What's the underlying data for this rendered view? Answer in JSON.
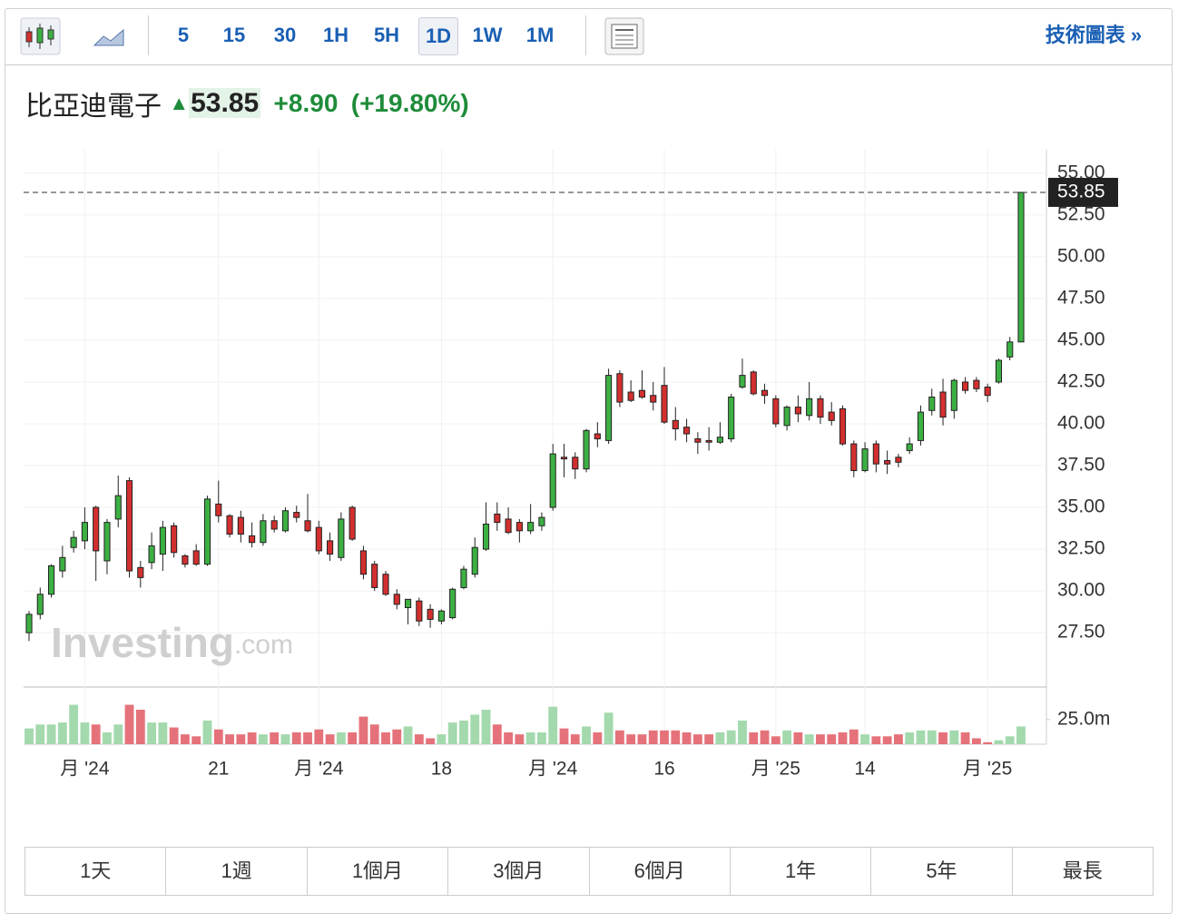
{
  "toolbar": {
    "intervals": [
      "5",
      "15",
      "30",
      "1H",
      "5H",
      "1D",
      "1W",
      "1M"
    ],
    "selected": "1D",
    "link": "技術圖表 »"
  },
  "quote": {
    "name": "比亞迪電子",
    "price": "53.85",
    "change": "+8.90",
    "change_pct": "(+19.80%)"
  },
  "periods": [
    "1天",
    "1週",
    "1個月",
    "3個月",
    "6個月",
    "1年",
    "5年",
    "最長"
  ],
  "chart_data": {
    "type": "candlestick",
    "watermark": [
      "Investing",
      ".com"
    ],
    "up_color": "#3cb043",
    "down_color": "#d32f2f",
    "volume_up_color": "#a3d9ad",
    "volume_down_color": "#e5727a",
    "categories": [
      null,
      null,
      null,
      null,
      null,
      "月 '24",
      null,
      null,
      null,
      null,
      null,
      null,
      null,
      null,
      null,
      null,
      null,
      "21",
      null,
      null,
      null,
      null,
      null,
      null,
      null,
      null,
      "月 '24",
      null,
      null,
      null,
      null,
      null,
      null,
      null,
      null,
      null,
      null,
      "18",
      null,
      null,
      null,
      null,
      null,
      null,
      null,
      null,
      null,
      "月 '24",
      null,
      null,
      null,
      null,
      null,
      null,
      null,
      null,
      null,
      "16",
      null,
      null,
      null,
      null,
      null,
      null,
      null,
      null,
      null,
      "月 '25",
      null,
      null,
      null,
      null,
      null,
      null,
      null,
      "14",
      null,
      null,
      null,
      null,
      null,
      null,
      null,
      null,
      null,
      null,
      "月 '25",
      null,
      null,
      null
    ],
    "open": [
      27.5,
      28.6,
      29.8,
      31.2,
      32.6,
      33.0,
      35.0,
      31.8,
      34.3,
      36.6,
      31.4,
      31.7,
      32.2,
      33.9,
      32.1,
      32.4,
      31.6,
      35.2,
      34.5,
      34.4,
      33.3,
      32.9,
      34.2,
      33.6,
      34.7,
      34.2,
      33.8,
      33.0,
      32.0,
      35.0,
      32.4,
      31.6,
      31.0,
      29.8,
      29.0,
      29.4,
      28.9,
      28.2,
      28.4,
      30.2,
      31.0,
      32.5,
      34.6,
      34.3,
      34.1,
      33.6,
      33.9,
      35.0,
      38.0,
      38.0,
      37.3,
      39.4,
      39.0,
      43.0,
      41.9,
      42.0,
      41.7,
      42.3,
      40.2,
      39.8,
      39.1,
      39.0,
      38.9,
      39.1,
      42.2,
      43.1,
      42.0,
      41.5,
      39.9,
      41.0,
      40.5,
      41.5,
      40.7,
      40.9,
      38.8,
      37.2,
      38.8,
      37.8,
      38.0,
      38.4,
      39.0,
      40.8,
      41.9,
      40.8,
      42.5,
      42.6,
      42.2,
      42.5,
      44.0,
      44.9
    ],
    "high": [
      28.8,
      30.2,
      31.6,
      32.7,
      33.6,
      35.0,
      35.1,
      34.3,
      36.9,
      36.8,
      31.8,
      33.5,
      34.2,
      34.1,
      32.2,
      32.8,
      35.7,
      36.6,
      34.6,
      34.8,
      34.1,
      34.6,
      34.5,
      35.0,
      35.1,
      35.8,
      34.2,
      33.5,
      34.7,
      35.1,
      32.7,
      31.8,
      31.2,
      30.1,
      29.5,
      29.6,
      29.2,
      28.9,
      30.2,
      31.5,
      33.2,
      35.3,
      35.3,
      35.0,
      34.3,
      35.2,
      34.7,
      38.8,
      38.8,
      38.3,
      39.7,
      40.1,
      43.3,
      43.2,
      42.6,
      43.2,
      42.5,
      43.4,
      41.0,
      40.3,
      39.5,
      39.8,
      40.1,
      41.8,
      43.9,
      43.2,
      42.4,
      41.7,
      41.1,
      41.7,
      42.5,
      41.7,
      41.3,
      41.1,
      39.0,
      38.9,
      39.0,
      38.4,
      38.2,
      39.2,
      41.1,
      42.1,
      42.7,
      42.7,
      42.8,
      42.8,
      42.4,
      43.9,
      45.2,
      53.85
    ],
    "low": [
      27.0,
      28.3,
      29.6,
      30.8,
      32.3,
      32.5,
      30.6,
      31.0,
      33.8,
      30.8,
      30.2,
      31.3,
      31.2,
      32.0,
      31.4,
      31.5,
      31.5,
      34.1,
      33.2,
      32.9,
      32.6,
      32.7,
      33.5,
      33.5,
      34.1,
      33.5,
      32.2,
      31.8,
      31.8,
      33.0,
      30.7,
      30.0,
      29.7,
      28.9,
      28.0,
      27.9,
      27.8,
      28.0,
      28.3,
      30.1,
      30.8,
      32.4,
      33.6,
      33.4,
      32.9,
      33.4,
      33.6,
      34.8,
      36.8,
      36.7,
      37.1,
      38.6,
      38.8,
      41.0,
      41.3,
      41.5,
      40.8,
      40.0,
      39.0,
      38.9,
      38.2,
      38.4,
      38.8,
      38.9,
      42.1,
      41.7,
      41.2,
      39.8,
      39.6,
      40.1,
      40.2,
      40.0,
      39.9,
      38.7,
      36.8,
      37.1,
      37.1,
      37.0,
      37.4,
      38.2,
      38.7,
      40.5,
      39.9,
      40.3,
      41.8,
      41.9,
      41.3,
      42.4,
      43.8,
      44.9
    ],
    "close": [
      28.6,
      29.8,
      31.5,
      32.0,
      33.2,
      34.1,
      32.4,
      34.1,
      35.7,
      31.2,
      30.8,
      32.7,
      33.8,
      32.3,
      31.6,
      31.6,
      35.5,
      34.5,
      33.4,
      33.4,
      32.9,
      34.2,
      33.7,
      34.8,
      34.4,
      33.6,
      32.4,
      32.2,
      34.3,
      33.1,
      31.0,
      30.2,
      29.8,
      29.2,
      29.5,
      28.2,
      28.3,
      28.8,
      30.1,
      31.3,
      32.6,
      34.0,
      34.1,
      33.5,
      33.6,
      34.1,
      34.4,
      38.2,
      37.9,
      37.3,
      39.6,
      39.1,
      42.9,
      41.3,
      41.4,
      41.6,
      41.3,
      40.1,
      39.7,
      39.4,
      38.9,
      38.9,
      39.2,
      41.6,
      42.9,
      41.8,
      41.7,
      40.0,
      41.0,
      40.6,
      41.5,
      40.4,
      40.2,
      38.8,
      37.2,
      38.5,
      37.6,
      37.6,
      37.7,
      38.8,
      40.7,
      41.6,
      40.4,
      42.6,
      42.0,
      42.1,
      41.7,
      43.8,
      44.9,
      53.85
    ],
    "volume": [
      16,
      20,
      20,
      22,
      40,
      22,
      20,
      12,
      20,
      40,
      35,
      22,
      22,
      17,
      10,
      8,
      24,
      15,
      10,
      10,
      12,
      10,
      12,
      10,
      12,
      12,
      15,
      10,
      12,
      12,
      28,
      20,
      12,
      15,
      18,
      10,
      6,
      10,
      22,
      24,
      30,
      35,
      20,
      12,
      10,
      12,
      12,
      38,
      16,
      10,
      18,
      12,
      32,
      14,
      10,
      10,
      14,
      14,
      14,
      12,
      10,
      10,
      12,
      14,
      24,
      12,
      14,
      8,
      14,
      12,
      10,
      10,
      10,
      12,
      15,
      10,
      8,
      8,
      10,
      12,
      14,
      14,
      12,
      14,
      12,
      6,
      2,
      4,
      8,
      18
    ],
    "ylim": [
      24.25,
      56.4
    ],
    "yticks": [
      {
        "value": 27.5,
        "label": "27.50"
      },
      {
        "value": 30,
        "label": "30.00"
      },
      {
        "value": 32.5,
        "label": "32.50"
      },
      {
        "value": 35,
        "label": "35.00"
      },
      {
        "value": 37.5,
        "label": "37.50"
      },
      {
        "value": 40,
        "label": "40.00"
      },
      {
        "value": 42.5,
        "label": "42.50"
      },
      {
        "value": 45,
        "label": "45.00"
      },
      {
        "value": 47.5,
        "label": "47.50"
      },
      {
        "value": 50,
        "label": "50.00"
      },
      {
        "value": 52.5,
        "label": "52.50"
      },
      {
        "value": 55,
        "label": "55.00"
      }
    ],
    "volume_ylim": [
      0,
      58
    ],
    "volume_yticks": [
      {
        "value": 25,
        "label": "25.0m"
      }
    ],
    "grid": true
  }
}
